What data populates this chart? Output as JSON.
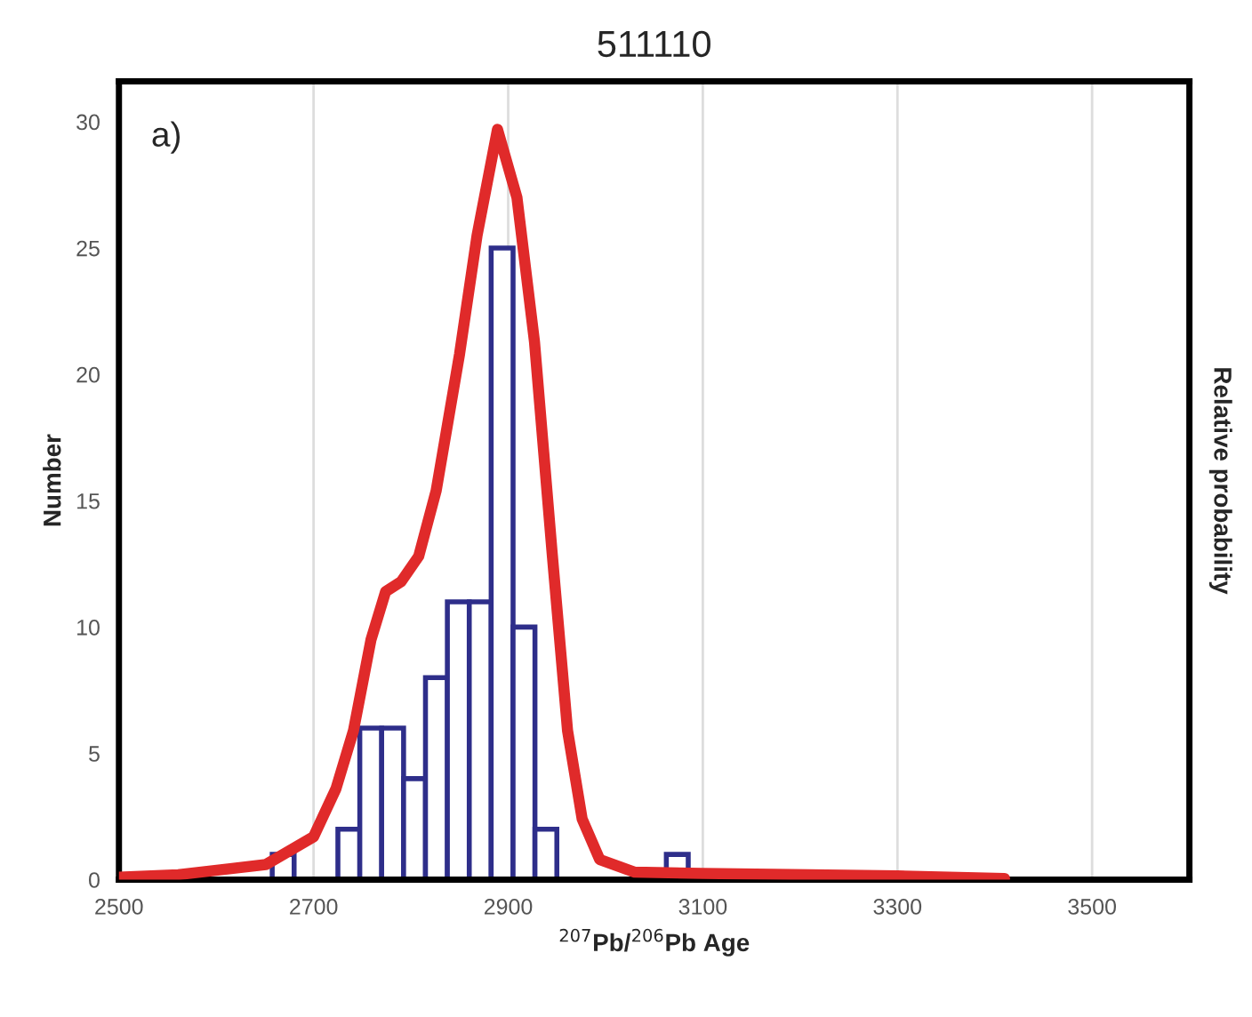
{
  "chart_data": {
    "type": "histogram",
    "title": "511110",
    "xlabel": "$^{207}$Pb/$^{206}$Pb Age",
    "ylabel": "Number",
    "y2label": "Relative probability",
    "annotations": [
      "a)"
    ],
    "xlim": [
      2500,
      3600
    ],
    "xticks": [
      2500,
      2700,
      2900,
      3100,
      3300,
      3500
    ],
    "ylim": [
      0,
      31.6
    ],
    "yticks": [
      0,
      5,
      10,
      15,
      20,
      25,
      30
    ],
    "grid": "x",
    "legend": false,
    "series": [
      {
        "color": "#2e2e8a",
        "bins": [
          2657.5,
          2680,
          2702.5,
          2725,
          2747.5,
          2770,
          2792.5,
          2815,
          2837.5,
          2860,
          2882.5,
          2905,
          2927.5,
          2950,
          2972.5,
          2995,
          3017.5,
          3040,
          3062.5,
          3085
        ],
        "values": [
          1,
          0,
          0,
          2,
          6,
          6,
          4,
          8,
          11,
          11,
          25,
          10,
          2,
          0,
          0,
          0,
          0,
          0,
          1
        ]
      },
      {
        "type": "line",
        "color": "#e02a2a",
        "x": [
          2500,
          2561,
          2651,
          2700,
          2723,
          2741,
          2759,
          2774,
          2790,
          2808,
          2826,
          2850,
          2868,
          2889,
          2909,
          2927,
          2945,
          2961,
          2976,
          2994,
          3030,
          3100,
          3300,
          3410
        ],
        "values": [
          0.1,
          0.2,
          0.6,
          1.7,
          3.6,
          5.9,
          9.5,
          11.4,
          11.8,
          12.8,
          15.4,
          20.8,
          25.5,
          29.7,
          27.0,
          21.3,
          13.0,
          5.9,
          2.4,
          0.8,
          0.3,
          0.25,
          0.15,
          0.05
        ]
      }
    ]
  }
}
